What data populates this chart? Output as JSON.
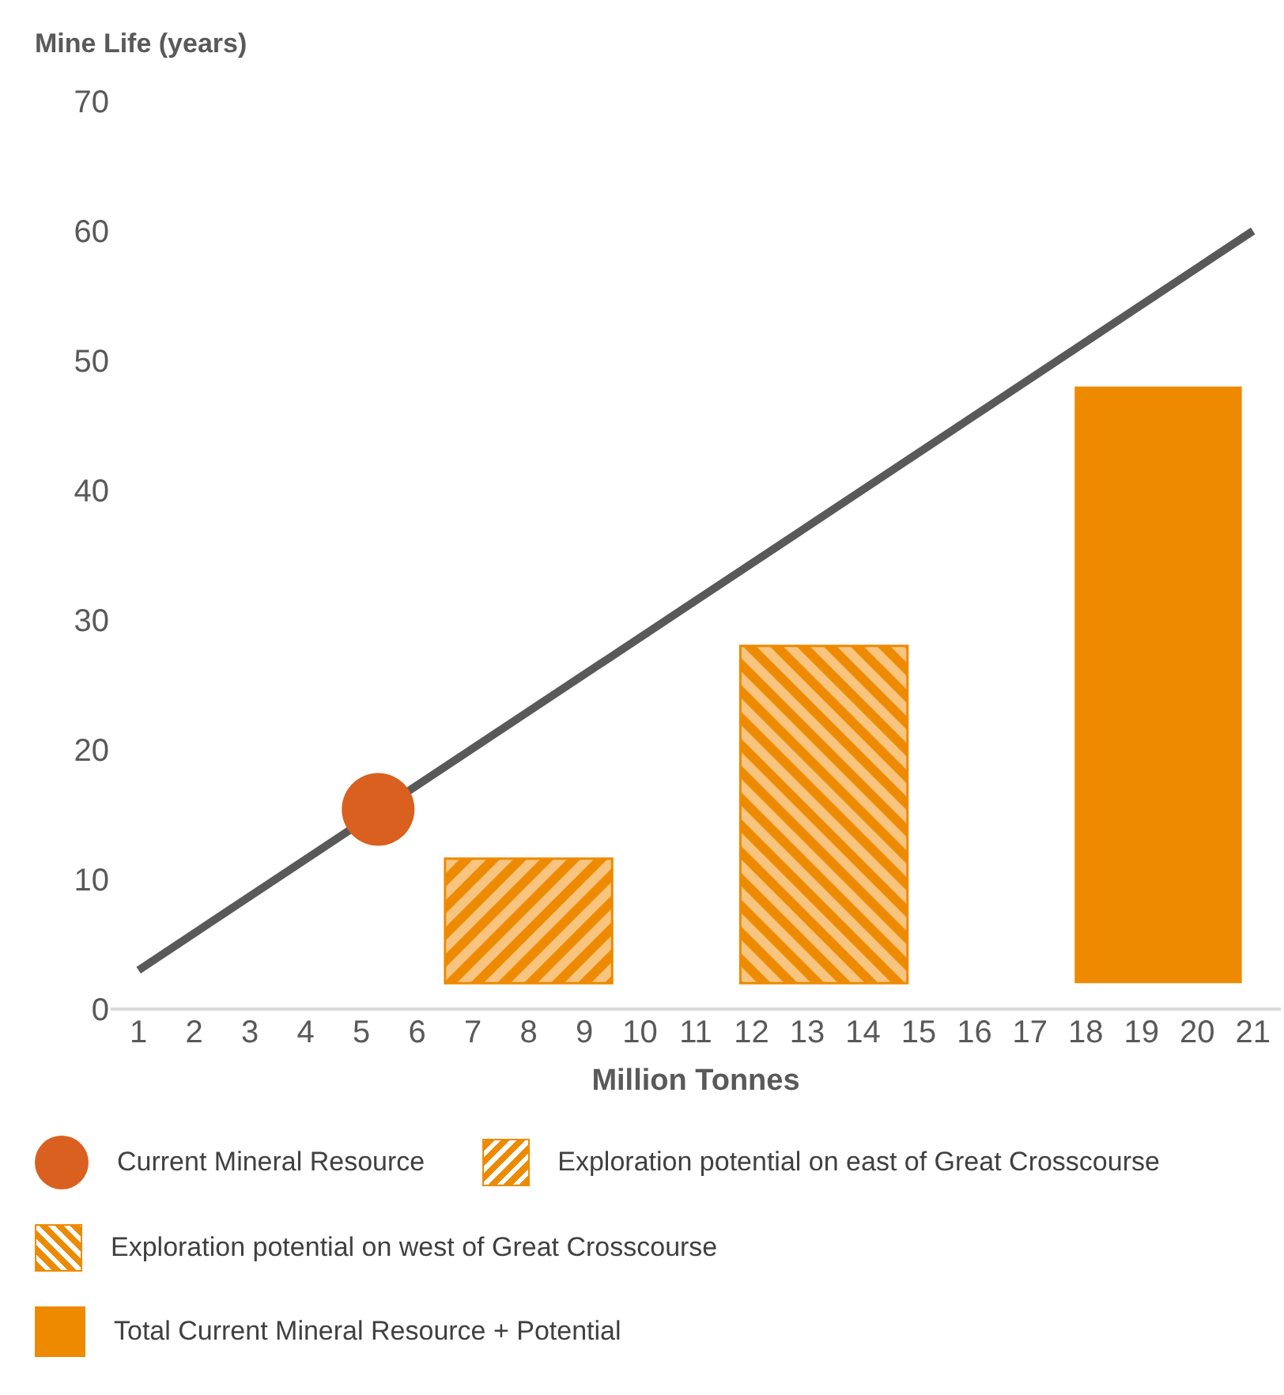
{
  "chart_data": {
    "type": "bar",
    "ylabel": "Mine Life (years)",
    "xlabel": "Million Tonnes",
    "xlim": [
      0.5,
      21.5
    ],
    "xticks": [
      1,
      2,
      3,
      4,
      5,
      6,
      7,
      8,
      9,
      10,
      11,
      12,
      13,
      14,
      15,
      16,
      17,
      18,
      19,
      20,
      21
    ],
    "ylim": [
      0,
      70
    ],
    "yticks": [
      0,
      10,
      20,
      30,
      40,
      50,
      60,
      70
    ],
    "grid": false,
    "legend": "bottom",
    "series": [
      {
        "type": "line",
        "color": "#595959",
        "x": [
          1,
          21
        ],
        "values": [
          3,
          60
        ]
      },
      {
        "type": "scatter",
        "name": "Current Mineral Resource",
        "color": "#d9601e",
        "x": [
          5.3
        ],
        "values": [
          15.4
        ],
        "marker": "circle"
      },
      {
        "name": "Exploration potential on east of Great Crosscourse",
        "color": "#ee8a00",
        "x": [
          8
        ],
        "base": [
          2
        ],
        "values": [
          9.6
        ]
      },
      {
        "name": "Exploration potential on west of Great Crosscourse",
        "color": "#ee8a00",
        "x": [
          13.3
        ],
        "base": [
          2
        ],
        "values": [
          26
        ]
      },
      {
        "name": "Total Current Mineral Resource + Potential",
        "color": "#ee8a00",
        "x": [
          19.3
        ],
        "base": [
          2
        ],
        "values": [
          46
        ]
      }
    ]
  }
}
